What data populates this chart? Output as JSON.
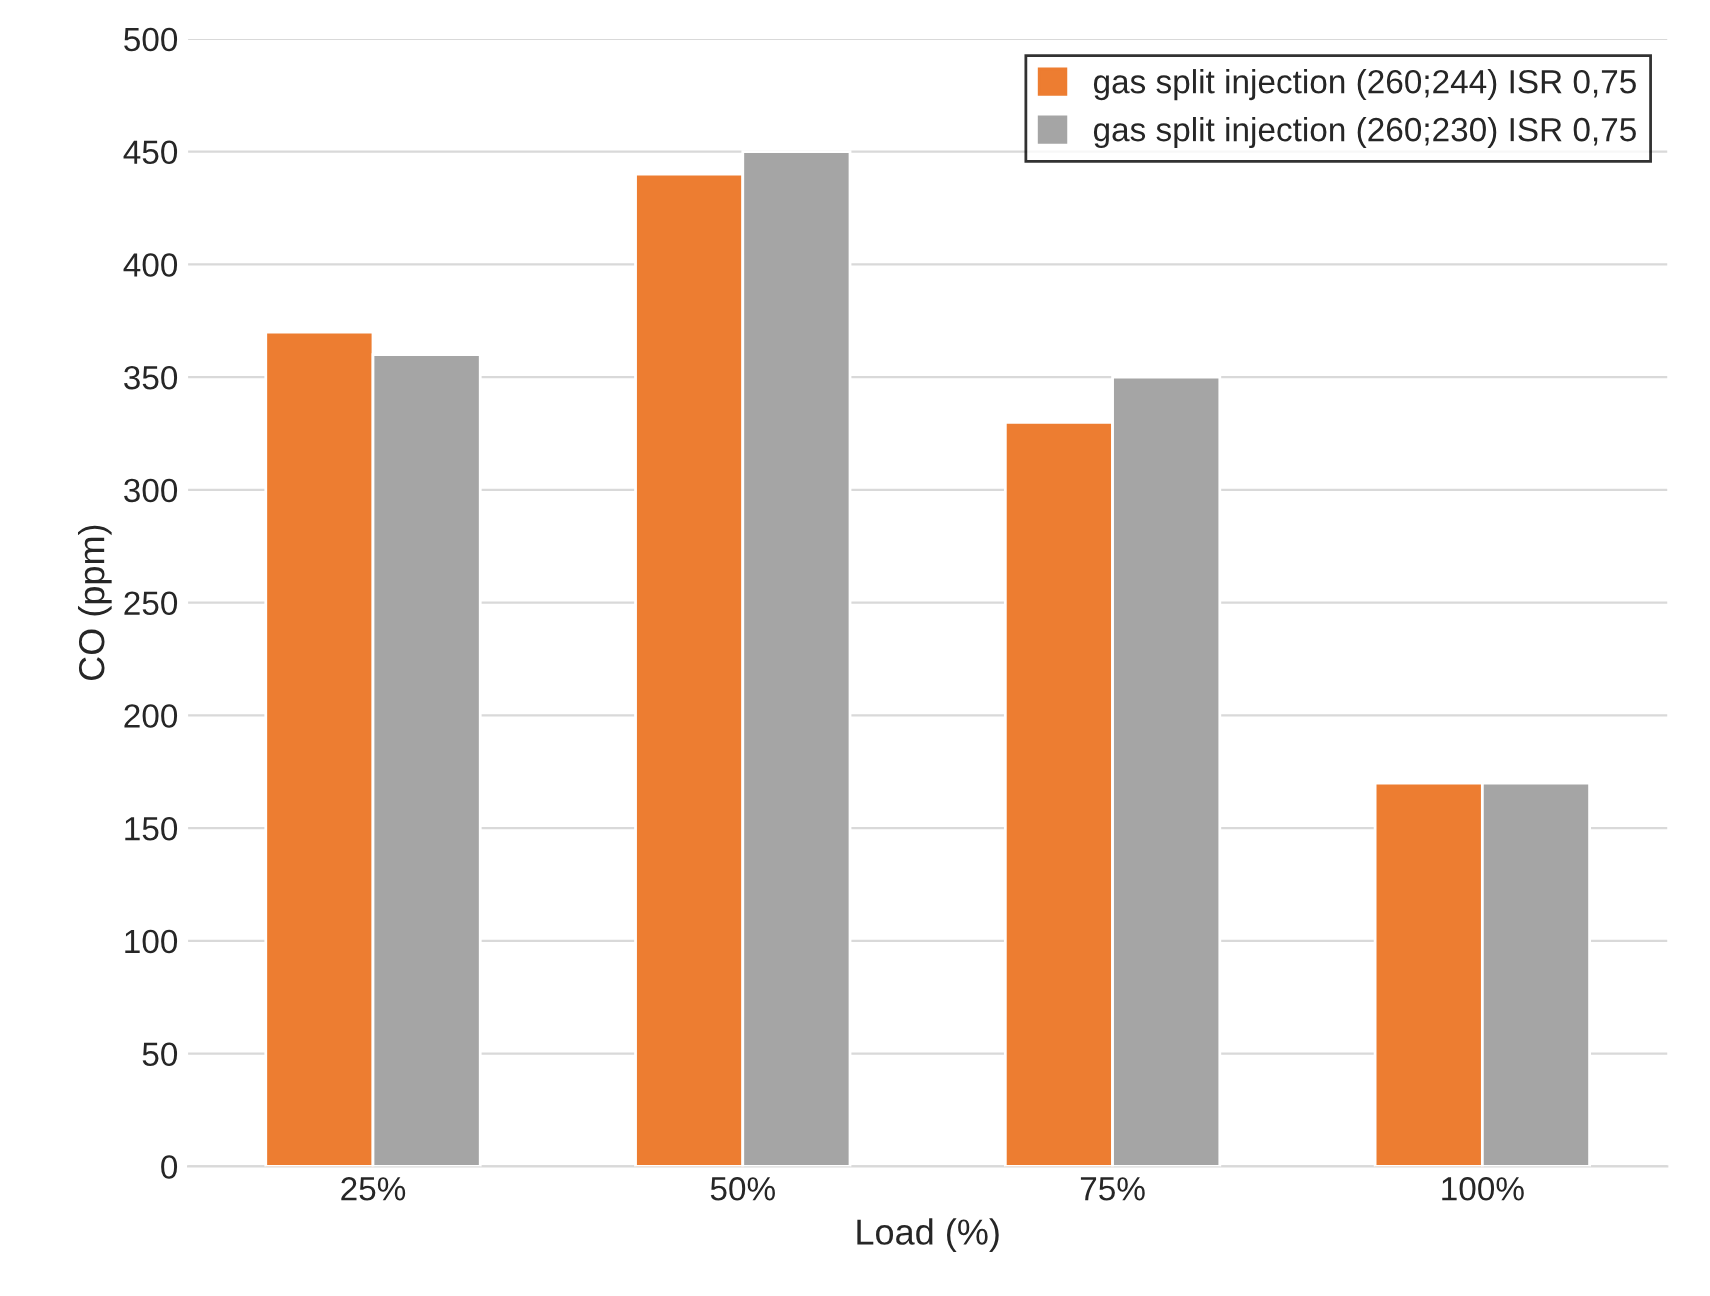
{
  "chart_data": {
    "type": "bar",
    "xlabel": "Load (%)",
    "ylabel": "CO (ppm)",
    "categories": [
      "25%",
      "50%",
      "75%",
      "100%"
    ],
    "series": [
      {
        "name": "gas split injection (260;244) ISR 0,75",
        "color": "#ed7d31",
        "values": [
          370,
          440,
          330,
          170
        ]
      },
      {
        "name": "gas split injection (260;230) ISR 0,75",
        "color": "#a5a5a5",
        "values": [
          360,
          450,
          350,
          170
        ]
      }
    ],
    "ylim": [
      0,
      500
    ],
    "yticks": [
      0,
      50,
      100,
      150,
      200,
      250,
      300,
      350,
      400,
      450,
      500
    ],
    "grid": "y",
    "legend": "top right"
  }
}
